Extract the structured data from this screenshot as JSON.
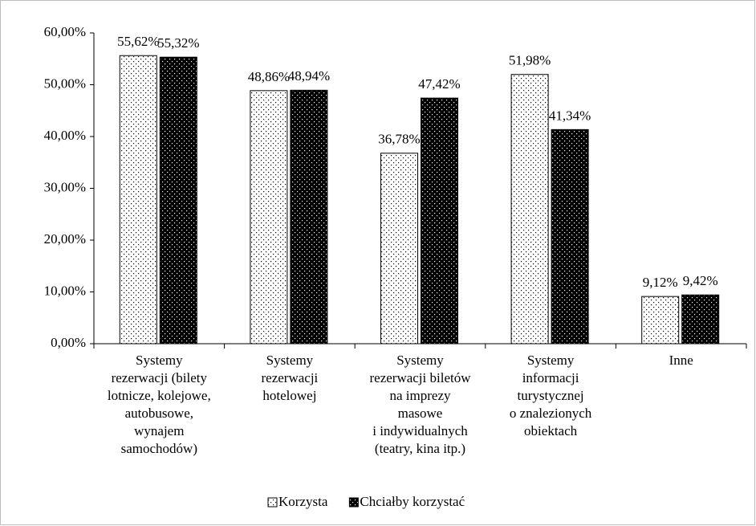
{
  "chart_data": {
    "type": "bar",
    "categories": [
      [
        "Systemy",
        "rezerwacji (bilety",
        "lotnicze, kolejowe,",
        "autobusowe,",
        "wynajem",
        "samochodów)"
      ],
      [
        "Systemy",
        "rezerwacji",
        "hotelowej"
      ],
      [
        "Systemy",
        "rezerwacji biletów",
        "na imprezy",
        "masowe",
        "i  indywidualnych",
        "(teatry, kina itp.)"
      ],
      [
        "Systemy",
        "informacji",
        "turystycznej",
        "o znalezionych",
        "obiektach"
      ],
      [
        "Inne"
      ]
    ],
    "series": [
      {
        "name": "Korzysta",
        "color": "#ffffff",
        "values": [
          55.62,
          48.86,
          36.78,
          51.98,
          9.12
        ],
        "value_labels": [
          "55,62%",
          "48,86%",
          "36,78%",
          "51,98%",
          "9,12%"
        ]
      },
      {
        "name": "Chciałby korzystać",
        "color": "#000000",
        "values": [
          55.32,
          48.94,
          47.42,
          41.34,
          9.42
        ],
        "value_labels": [
          "55,32%",
          "48,94%",
          "47,42%",
          "41,34%",
          "9,42%"
        ]
      }
    ],
    "ylim": [
      0,
      60
    ],
    "yticks": [
      {
        "value": 0,
        "label": "0,00%"
      },
      {
        "value": 10,
        "label": "10,00%"
      },
      {
        "value": 20,
        "label": "20,00%"
      },
      {
        "value": 30,
        "label": "30,00%"
      },
      {
        "value": 40,
        "label": "40,00%"
      },
      {
        "value": 50,
        "label": "50,00%"
      },
      {
        "value": 60,
        "label": "60,00%"
      }
    ],
    "legend": "bottom"
  }
}
